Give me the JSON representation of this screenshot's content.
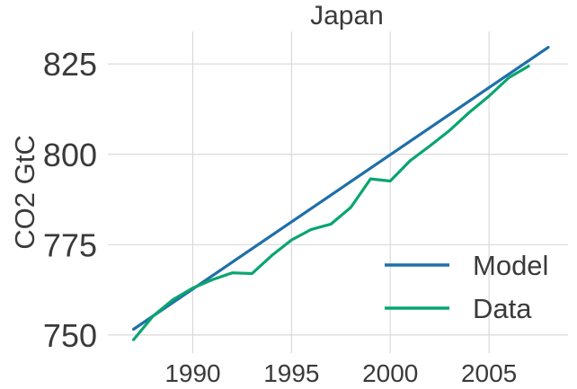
{
  "chart_data": {
    "type": "line",
    "title": "Japan",
    "xlabel": "",
    "ylabel": "CO2 GtC",
    "xlim": [
      1985.7,
      2009.0
    ],
    "ylim": [
      745,
      834
    ],
    "x_ticks": [
      1990,
      1995,
      2000,
      2005
    ],
    "y_ticks": [
      750,
      775,
      800,
      825
    ],
    "grid": true,
    "legend": "lower-right",
    "series": [
      {
        "name": "Model",
        "color": "#1f6fa8",
        "x": [
          1987,
          2008
        ],
        "y": [
          751.6,
          829.6
        ]
      },
      {
        "name": "Data",
        "color": "#0aa56f",
        "x": [
          1987,
          1988,
          1989,
          1990,
          1991,
          1992,
          1993,
          1994,
          1995,
          1996,
          1997,
          1998,
          1999,
          2000,
          2001,
          2002,
          2003,
          2004,
          2005,
          2006,
          2007
        ],
        "y": [
          748.7,
          755.3,
          759.8,
          763.0,
          765.3,
          767.2,
          767.0,
          772.0,
          776.3,
          779.2,
          780.7,
          785.3,
          793.2,
          792.6,
          798.2,
          802.3,
          806.6,
          811.6,
          816.1,
          821.2,
          824.4
        ]
      }
    ]
  }
}
